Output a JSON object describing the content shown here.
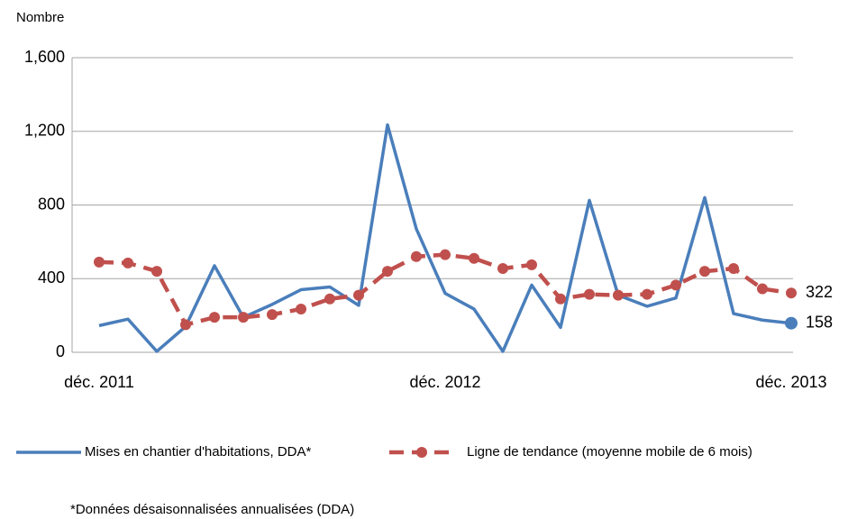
{
  "chart_data": {
    "type": "line",
    "y_label": "Nombre",
    "categories": [
      "déc. 2011",
      null,
      null,
      null,
      null,
      null,
      null,
      null,
      null,
      null,
      null,
      null,
      "déc. 2012",
      null,
      null,
      null,
      null,
      null,
      null,
      null,
      null,
      null,
      null,
      null,
      "déc. 2013"
    ],
    "series": [
      {
        "name": "Mises en chantier d'habitations, DDA*",
        "color": "#4a7ebb",
        "values": [
          145,
          180,
          5,
          140,
          470,
          190,
          260,
          340,
          355,
          255,
          1235,
          670,
          320,
          235,
          5,
          365,
          135,
          825,
          310,
          250,
          295,
          840,
          210,
          175,
          158
        ]
      },
      {
        "name": "Ligne de tendance (moyenne mobile de 6 mois)",
        "color": "#c0504d",
        "values": [
          490,
          485,
          440,
          150,
          190,
          190,
          205,
          235,
          290,
          310,
          440,
          520,
          530,
          510,
          455,
          475,
          290,
          315,
          310,
          315,
          365,
          440,
          455,
          345,
          322
        ]
      }
    ],
    "ylim": [
      0,
      1600
    ],
    "yticks": [
      0,
      400,
      800,
      {
        "value": 1200,
        "label": "1,200"
      },
      {
        "value": 1600,
        "label": "1,600"
      }
    ],
    "grid": true,
    "legend": "bottom",
    "footnote": "*Données désaisonnalisées annualisées (DDA)"
  }
}
